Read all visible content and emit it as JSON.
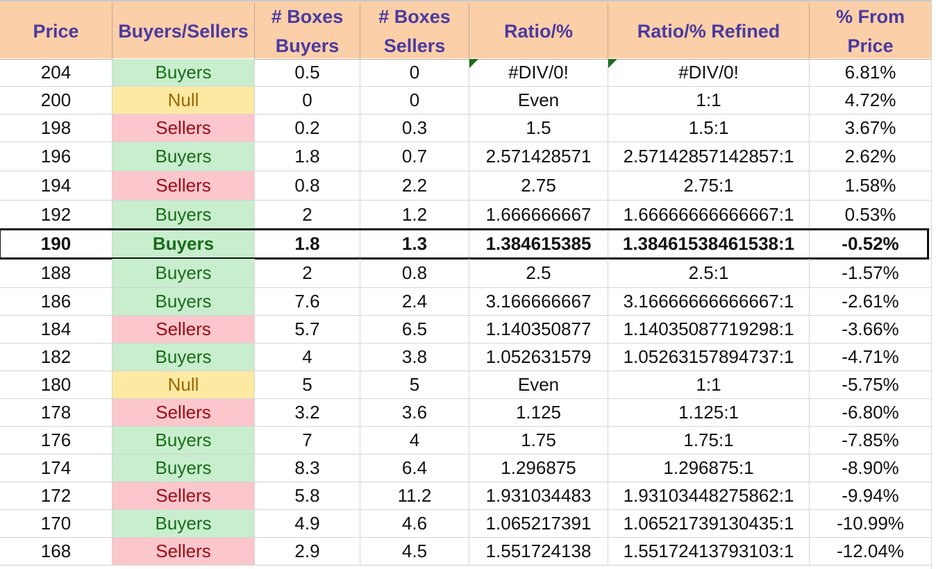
{
  "colors": {
    "header_bg": "#fbcfa8",
    "header_text": "#4a3aa0",
    "buyers_bg": "#c8eece",
    "buyers_text": "#1a6b1a",
    "sellers_bg": "#fbc7cd",
    "sellers_text": "#9c0a14",
    "null_bg": "#fde9a2",
    "null_text": "#9b6500",
    "error_flag": "#1c6b1c"
  },
  "headers": [
    {
      "line1": "Price",
      "line2": ""
    },
    {
      "line1": "Buyers/Sellers",
      "line2": ""
    },
    {
      "line1": "# Boxes",
      "line2": "Buyers"
    },
    {
      "line1": "# Boxes",
      "line2": "Sellers"
    },
    {
      "line1": "Ratio/%",
      "line2": ""
    },
    {
      "line1": "Ratio/% Refined",
      "line2": ""
    },
    {
      "line1": "% From",
      "line2": "Price"
    }
  ],
  "current_price_row": 6,
  "rows": [
    {
      "price": "204",
      "side": "Buyers",
      "boxes_buyers": "0.5",
      "boxes_sellers": "0",
      "ratio": "#DIV/0!",
      "ratio_refined": "#DIV/0!",
      "from_price": "6.81%"
    },
    {
      "price": "200",
      "side": "Null",
      "boxes_buyers": "0",
      "boxes_sellers": "0",
      "ratio": "Even",
      "ratio_refined": "1:1",
      "from_price": "4.72%"
    },
    {
      "price": "198",
      "side": "Sellers",
      "boxes_buyers": "0.2",
      "boxes_sellers": "0.3",
      "ratio": "1.5",
      "ratio_refined": "1.5:1",
      "from_price": "3.67%"
    },
    {
      "price": "196",
      "side": "Buyers",
      "boxes_buyers": "1.8",
      "boxes_sellers": "0.7",
      "ratio": "2.571428571",
      "ratio_refined": "2.57142857142857:1",
      "from_price": "2.62%"
    },
    {
      "price": "194",
      "side": "Sellers",
      "boxes_buyers": "0.8",
      "boxes_sellers": "2.2",
      "ratio": "2.75",
      "ratio_refined": "2.75:1",
      "from_price": "1.58%"
    },
    {
      "price": "192",
      "side": "Buyers",
      "boxes_buyers": "2",
      "boxes_sellers": "1.2",
      "ratio": "1.666666667",
      "ratio_refined": "1.66666666666667:1",
      "from_price": "0.53%"
    },
    {
      "price": "190",
      "side": "Buyers",
      "boxes_buyers": "1.8",
      "boxes_sellers": "1.3",
      "ratio": "1.384615385",
      "ratio_refined": "1.38461538461538:1",
      "from_price": "-0.52%"
    },
    {
      "price": "188",
      "side": "Buyers",
      "boxes_buyers": "2",
      "boxes_sellers": "0.8",
      "ratio": "2.5",
      "ratio_refined": "2.5:1",
      "from_price": "-1.57%"
    },
    {
      "price": "186",
      "side": "Buyers",
      "boxes_buyers": "7.6",
      "boxes_sellers": "2.4",
      "ratio": "3.166666667",
      "ratio_refined": "3.16666666666667:1",
      "from_price": "-2.61%"
    },
    {
      "price": "184",
      "side": "Sellers",
      "boxes_buyers": "5.7",
      "boxes_sellers": "6.5",
      "ratio": "1.140350877",
      "ratio_refined": "1.14035087719298:1",
      "from_price": "-3.66%"
    },
    {
      "price": "182",
      "side": "Buyers",
      "boxes_buyers": "4",
      "boxes_sellers": "3.8",
      "ratio": "1.052631579",
      "ratio_refined": "1.05263157894737:1",
      "from_price": "-4.71%"
    },
    {
      "price": "180",
      "side": "Null",
      "boxes_buyers": "5",
      "boxes_sellers": "5",
      "ratio": "Even",
      "ratio_refined": "1:1",
      "from_price": "-5.75%"
    },
    {
      "price": "178",
      "side": "Sellers",
      "boxes_buyers": "3.2",
      "boxes_sellers": "3.6",
      "ratio": "1.125",
      "ratio_refined": "1.125:1",
      "from_price": "-6.80%"
    },
    {
      "price": "176",
      "side": "Buyers",
      "boxes_buyers": "7",
      "boxes_sellers": "4",
      "ratio": "1.75",
      "ratio_refined": "1.75:1",
      "from_price": "-7.85%"
    },
    {
      "price": "174",
      "side": "Buyers",
      "boxes_buyers": "8.3",
      "boxes_sellers": "6.4",
      "ratio": "1.296875",
      "ratio_refined": "1.296875:1",
      "from_price": "-8.90%"
    },
    {
      "price": "172",
      "side": "Sellers",
      "boxes_buyers": "5.8",
      "boxes_sellers": "11.2",
      "ratio": "1.931034483",
      "ratio_refined": "1.93103448275862:1",
      "from_price": "-9.94%"
    },
    {
      "price": "170",
      "side": "Buyers",
      "boxes_buyers": "4.9",
      "boxes_sellers": "4.6",
      "ratio": "1.065217391",
      "ratio_refined": "1.06521739130435:1",
      "from_price": "-10.99%"
    },
    {
      "price": "168",
      "side": "Sellers",
      "boxes_buyers": "2.9",
      "boxes_sellers": "4.5",
      "ratio": "1.551724138",
      "ratio_refined": "1.55172413793103:1",
      "from_price": "-12.04%"
    }
  ]
}
